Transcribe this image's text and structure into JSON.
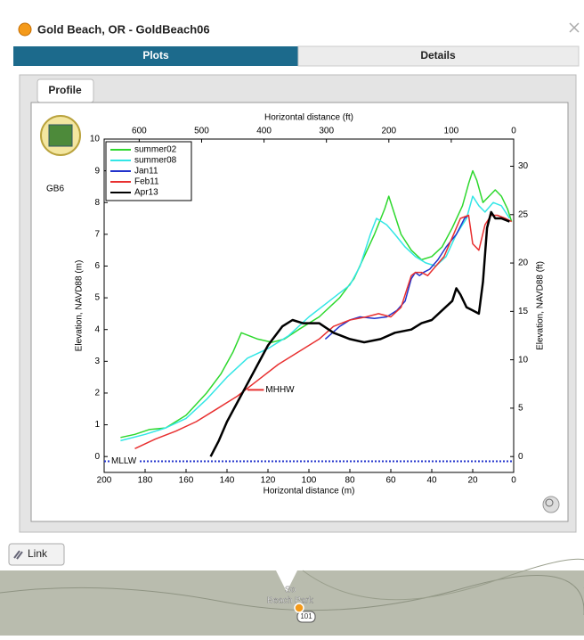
{
  "window": {
    "title": "Gold Beach, OR - GoldBeach06",
    "tabs": [
      "Plots",
      "Details"
    ],
    "subtab": "Profile",
    "station": "GB6",
    "link": "Link"
  },
  "map": {
    "labels": [
      "So",
      "Beach Park",
      "101"
    ]
  },
  "chart_data": {
    "type": "line",
    "xlabel": "Horizontal distance (m)",
    "x2label": "Horizontal distance (ft)",
    "ylabel": "Elevation, NAVD88 (m)",
    "y2label": "Elevation, NAVD88 (ft)",
    "xlim": [
      200,
      0
    ],
    "xticks": [
      200,
      180,
      160,
      140,
      120,
      100,
      80,
      60,
      40,
      20,
      0
    ],
    "x2lim": [
      656.17,
      0
    ],
    "x2ticks": [
      600,
      500,
      400,
      300,
      200,
      100,
      0
    ],
    "ylim": [
      -0.5,
      10
    ],
    "yticks": [
      0,
      1,
      2,
      3,
      4,
      5,
      6,
      7,
      8,
      9,
      10
    ],
    "y2lim": [
      -1.64,
      32.81
    ],
    "y2ticks": [
      0,
      5,
      10,
      15,
      20,
      25,
      30
    ],
    "grid": false,
    "legend": "upper left",
    "series": [
      {
        "name": "summer02",
        "color": "#2ed82e",
        "x": [
          192,
          185,
          178,
          170,
          160,
          150,
          143,
          137,
          133,
          125,
          118,
          112,
          105,
          95,
          85,
          78,
          73,
          68,
          63,
          61,
          58,
          55,
          50,
          45,
          40,
          35,
          30,
          25,
          22,
          20,
          18,
          15,
          12,
          9,
          6,
          3,
          1
        ],
        "values": [
          0.6,
          0.7,
          0.85,
          0.9,
          1.3,
          2.0,
          2.6,
          3.3,
          3.9,
          3.7,
          3.6,
          3.7,
          4.0,
          4.4,
          5.0,
          5.6,
          6.3,
          7.0,
          7.8,
          8.2,
          7.6,
          7.0,
          6.5,
          6.2,
          6.3,
          6.6,
          7.2,
          7.9,
          8.6,
          9.0,
          8.7,
          8.0,
          8.2,
          8.4,
          8.2,
          7.8,
          7.4
        ]
      },
      {
        "name": "summer08",
        "color": "#33e6e6",
        "x": [
          192,
          180,
          170,
          160,
          150,
          140,
          130,
          120,
          110,
          100,
          90,
          80,
          75,
          70,
          67,
          62,
          58,
          53,
          48,
          43,
          38,
          33,
          28,
          23,
          20,
          17,
          14,
          10,
          6,
          2
        ],
        "values": [
          0.5,
          0.7,
          0.9,
          1.2,
          1.8,
          2.5,
          3.1,
          3.4,
          3.8,
          4.4,
          4.9,
          5.4,
          6.0,
          7.0,
          7.5,
          7.3,
          7.0,
          6.6,
          6.3,
          6.1,
          6.0,
          6.3,
          7.0,
          7.5,
          8.2,
          7.9,
          7.7,
          8.0,
          7.9,
          7.5
        ]
      },
      {
        "name": "Jan11",
        "color": "#2233cc",
        "x": [
          92,
          85,
          80,
          75,
          68,
          62,
          57,
          53,
          50,
          48,
          46,
          44,
          41,
          37,
          33,
          28,
          24,
          22
        ],
        "values": [
          3.7,
          4.1,
          4.3,
          4.4,
          4.35,
          4.4,
          4.6,
          4.9,
          5.6,
          5.8,
          5.7,
          5.8,
          5.9,
          6.2,
          6.6,
          7.0,
          7.5,
          7.6
        ]
      },
      {
        "name": "Feb11",
        "color": "#e83030",
        "x": [
          185,
          175,
          165,
          155,
          145,
          135,
          125,
          115,
          105,
          95,
          88,
          80,
          72,
          66,
          60,
          55,
          52,
          50,
          48,
          45,
          42,
          38,
          34,
          30,
          26,
          22,
          20,
          17,
          14,
          11,
          8,
          4,
          1
        ],
        "values": [
          0.25,
          0.55,
          0.8,
          1.1,
          1.5,
          1.9,
          2.4,
          2.9,
          3.3,
          3.7,
          4.1,
          4.3,
          4.4,
          4.5,
          4.4,
          4.7,
          5.3,
          5.7,
          5.8,
          5.8,
          5.7,
          6.0,
          6.3,
          6.9,
          7.5,
          7.6,
          6.7,
          6.5,
          7.3,
          7.6,
          7.6,
          7.5,
          7.4
        ]
      },
      {
        "name": "Apr13",
        "color": "#000000",
        "x": [
          148,
          144,
          140,
          135,
          130,
          125,
          120,
          113,
          108,
          103,
          95,
          88,
          80,
          73,
          65,
          58,
          50,
          45,
          40,
          35,
          30,
          28,
          26,
          23,
          20,
          17,
          15,
          13,
          11,
          9,
          6,
          2
        ],
        "values": [
          0.0,
          0.5,
          1.1,
          1.7,
          2.3,
          2.9,
          3.5,
          4.1,
          4.3,
          4.2,
          4.2,
          3.9,
          3.7,
          3.6,
          3.7,
          3.9,
          4.0,
          4.2,
          4.3,
          4.6,
          4.9,
          5.3,
          5.1,
          4.7,
          4.6,
          4.5,
          5.5,
          7.2,
          7.7,
          7.5,
          7.5,
          7.4
        ]
      }
    ],
    "datums": [
      {
        "label": "MLLW",
        "value": -0.15,
        "color": "#2233cc",
        "x": [
          200,
          0
        ]
      },
      {
        "label": "MHHW",
        "value": 2.1,
        "color": "#e83030",
        "x": [
          130,
          122
        ]
      }
    ]
  }
}
